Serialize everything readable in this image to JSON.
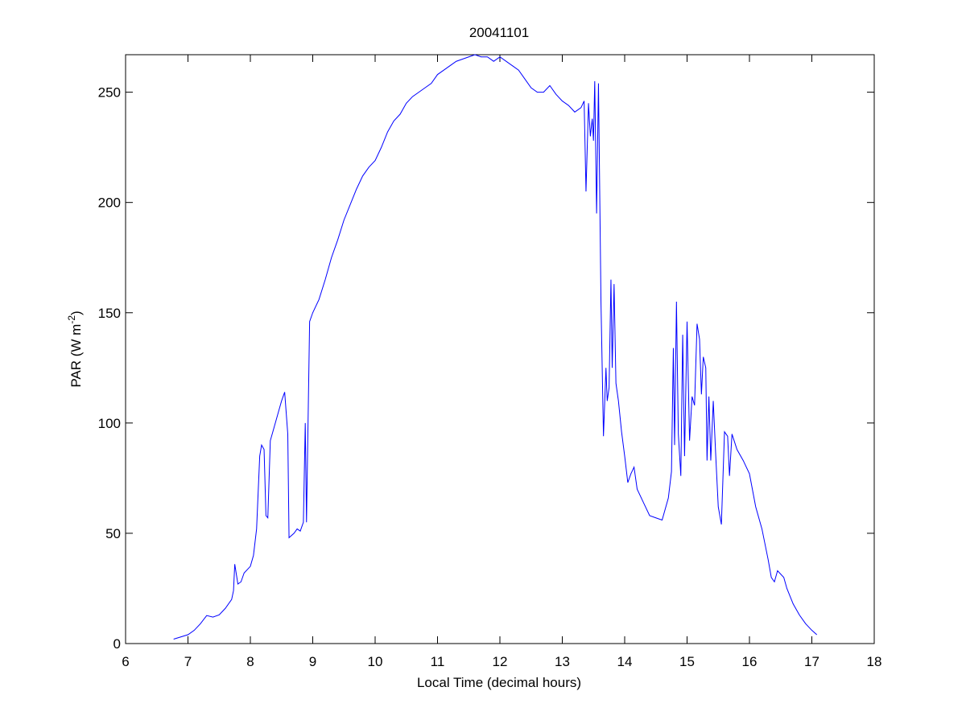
{
  "chart_data": {
    "type": "line",
    "title": "20041101",
    "xlabel": "Local Time (decimal hours)",
    "ylabel": [
      "PAR (W m",
      "-2",
      ")"
    ],
    "xlim": [
      6,
      18
    ],
    "xticks": [
      6,
      7,
      8,
      9,
      10,
      11,
      12,
      13,
      14,
      15,
      16,
      17,
      18
    ],
    "ylim": [
      0,
      267
    ],
    "yticks": [
      0,
      50,
      100,
      150,
      200,
      250
    ],
    "grid": false,
    "series": [
      {
        "color": "#0000ff",
        "x": [
          6.77,
          7.0,
          7.1,
          7.2,
          7.3,
          7.4,
          7.5,
          7.6,
          7.7,
          7.73,
          7.75,
          7.8,
          7.85,
          7.9,
          8.0,
          8.05,
          8.1,
          8.15,
          8.18,
          8.22,
          8.25,
          8.28,
          8.32,
          8.38,
          8.45,
          8.5,
          8.55,
          8.6,
          8.62,
          8.7,
          8.75,
          8.8,
          8.85,
          8.88,
          8.9,
          8.95,
          9.0,
          9.1,
          9.2,
          9.3,
          9.4,
          9.5,
          9.6,
          9.7,
          9.8,
          9.9,
          10.0,
          10.1,
          10.2,
          10.3,
          10.4,
          10.5,
          10.6,
          10.7,
          10.8,
          10.9,
          11.0,
          11.1,
          11.2,
          11.3,
          11.4,
          11.5,
          11.6,
          11.7,
          11.8,
          11.9,
          12.0,
          12.1,
          12.2,
          12.3,
          12.4,
          12.5,
          12.6,
          12.7,
          12.8,
          12.9,
          13.0,
          13.1,
          13.2,
          13.3,
          13.35,
          13.38,
          13.42,
          13.45,
          13.48,
          13.5,
          13.52,
          13.55,
          13.58,
          13.62,
          13.66,
          13.7,
          13.72,
          13.75,
          13.78,
          13.8,
          13.83,
          13.86,
          13.9,
          13.95,
          14.0,
          14.05,
          14.1,
          14.15,
          14.2,
          14.3,
          14.4,
          14.5,
          14.6,
          14.7,
          14.75,
          14.78,
          14.8,
          14.83,
          14.86,
          14.9,
          14.93,
          14.96,
          15.0,
          15.04,
          15.08,
          15.12,
          15.16,
          15.2,
          15.23,
          15.26,
          15.3,
          15.32,
          15.35,
          15.38,
          15.42,
          15.46,
          15.5,
          15.55,
          15.6,
          15.65,
          15.68,
          15.72,
          15.8,
          15.9,
          16.0,
          16.1,
          16.2,
          16.3,
          16.35,
          16.4,
          16.45,
          16.55,
          16.6,
          16.7,
          16.8,
          16.9,
          17.0,
          17.08
        ],
        "values": [
          2,
          4,
          6,
          9,
          12.7,
          12,
          13,
          16,
          20,
          24,
          36,
          27,
          28,
          32,
          35,
          40,
          52,
          85,
          90,
          88,
          58,
          57,
          92,
          98,
          105,
          110,
          114,
          95,
          48,
          50,
          52,
          51,
          55,
          100,
          55,
          146,
          150,
          156,
          165,
          175,
          183,
          192,
          199,
          206,
          212,
          216,
          219,
          225,
          232,
          237,
          240,
          245,
          248,
          250,
          252,
          254,
          258,
          260,
          262,
          264,
          265,
          266,
          267,
          266,
          266,
          264,
          266,
          264,
          262,
          260,
          256,
          252,
          250,
          250,
          253,
          249,
          246,
          244,
          241,
          243,
          246,
          205,
          245,
          230,
          238,
          228,
          255,
          195,
          254,
          155,
          94,
          125,
          110,
          116,
          165,
          125,
          163,
          118,
          110,
          96,
          85,
          73,
          77,
          80,
          70,
          64,
          58,
          57,
          56,
          66,
          78,
          134,
          90,
          155,
          95,
          76,
          140,
          85,
          146,
          92,
          112,
          108,
          145,
          138,
          113,
          130,
          125,
          83,
          112,
          83,
          110,
          85,
          62,
          54,
          96,
          94,
          76,
          95,
          88,
          83,
          77,
          62,
          52,
          38,
          30,
          28,
          33,
          30,
          25,
          18,
          13,
          9,
          6,
          4
        ]
      }
    ]
  }
}
